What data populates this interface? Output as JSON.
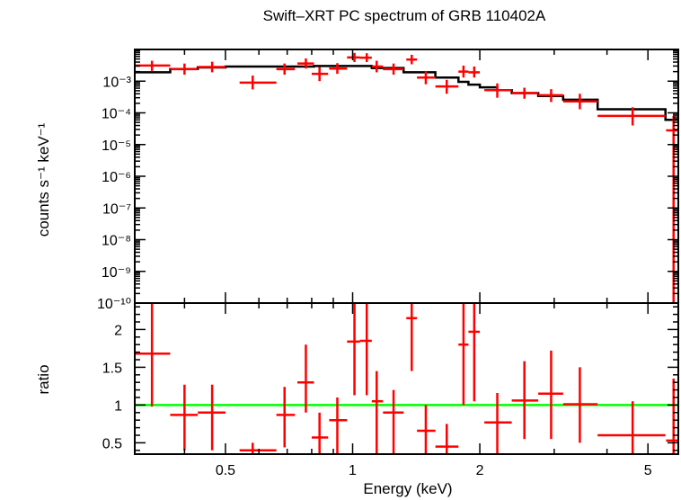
{
  "chart_data": {
    "type": "scatter",
    "title": "Swift–XRT PC spectrum of GRB 110402A",
    "xlabel": "Energy (keV)",
    "x_scale": "log",
    "xlim": [
      0.305,
      5.9
    ],
    "x_ticks": [
      {
        "value": 0.5,
        "label": "0.5"
      },
      {
        "value": 1,
        "label": "1"
      },
      {
        "value": 2,
        "label": "2"
      },
      {
        "value": 5,
        "label": "5"
      }
    ],
    "colors": {
      "data": "#ff0000",
      "model": "#000000",
      "unity": "#00ff00"
    },
    "top_panel": {
      "ylabel": "counts s⁻¹ keV⁻¹",
      "y_scale": "log",
      "ylim": [
        1e-10,
        0.01
      ],
      "y_ticks": [
        {
          "value": 0.001,
          "label": "10⁻³"
        },
        {
          "value": 0.0001,
          "label": "10⁻⁴"
        },
        {
          "value": 1e-05,
          "label": "10⁻⁵"
        },
        {
          "value": 1e-06,
          "label": "10⁻⁶"
        },
        {
          "value": 1e-07,
          "label": "10⁻⁷"
        },
        {
          "value": 1e-08,
          "label": "10⁻⁸"
        },
        {
          "value": 1e-09,
          "label": "10⁻⁹"
        },
        {
          "value": 1e-10,
          "label": "10⁻¹⁰"
        }
      ],
      "series": [
        {
          "type": "errorbar",
          "points": [
            {
              "x": 0.335,
              "xlo": 0.305,
              "xhi": 0.37,
              "y": 0.0031,
              "ylo": 0.0021,
              "yhi": 0.0044
            },
            {
              "x": 0.4,
              "xlo": 0.37,
              "xhi": 0.43,
              "y": 0.0024,
              "ylo": 0.0016,
              "yhi": 0.0036
            },
            {
              "x": 0.465,
              "xlo": 0.43,
              "xhi": 0.5,
              "y": 0.0028,
              "ylo": 0.0019,
              "yhi": 0.0041
            },
            {
              "x": 0.58,
              "xlo": 0.54,
              "xhi": 0.66,
              "y": 0.0009,
              "ylo": 0.00055,
              "yhi": 0.0015
            },
            {
              "x": 0.69,
              "xlo": 0.66,
              "xhi": 0.73,
              "y": 0.0024,
              "ylo": 0.0016,
              "yhi": 0.0036
            },
            {
              "x": 0.775,
              "xlo": 0.74,
              "xhi": 0.81,
              "y": 0.0036,
              "ylo": 0.0025,
              "yhi": 0.0052
            },
            {
              "x": 0.835,
              "xlo": 0.8,
              "xhi": 0.875,
              "y": 0.0017,
              "ylo": 0.001,
              "yhi": 0.0028
            },
            {
              "x": 0.92,
              "xlo": 0.88,
              "xhi": 0.97,
              "y": 0.0025,
              "ylo": 0.0017,
              "yhi": 0.0037
            },
            {
              "x": 1.01,
              "xlo": 0.97,
              "xhi": 1.04,
              "y": 0.0056,
              "ylo": 0.004,
              "yhi": 0.0078
            },
            {
              "x": 1.08,
              "xlo": 1.04,
              "xhi": 1.11,
              "y": 0.0055,
              "ylo": 0.004,
              "yhi": 0.0076
            },
            {
              "x": 1.14,
              "xlo": 1.11,
              "xhi": 1.18,
              "y": 0.0029,
              "ylo": 0.0019,
              "yhi": 0.0044
            },
            {
              "x": 1.25,
              "xlo": 1.18,
              "xhi": 1.32,
              "y": 0.0024,
              "ylo": 0.0016,
              "yhi": 0.0036
            },
            {
              "x": 1.38,
              "xlo": 1.34,
              "xhi": 1.42,
              "y": 0.0048,
              "ylo": 0.0034,
              "yhi": 0.0068
            },
            {
              "x": 1.49,
              "xlo": 1.42,
              "xhi": 1.57,
              "y": 0.0013,
              "ylo": 0.0008,
              "yhi": 0.0021
            },
            {
              "x": 1.67,
              "xlo": 1.57,
              "xhi": 1.78,
              "y": 0.00068,
              "ylo": 0.0004,
              "yhi": 0.0011
            },
            {
              "x": 1.83,
              "xlo": 1.78,
              "xhi": 1.88,
              "y": 0.002,
              "ylo": 0.0013,
              "yhi": 0.0031
            },
            {
              "x": 1.94,
              "xlo": 1.88,
              "xhi": 2.0,
              "y": 0.0019,
              "ylo": 0.0013,
              "yhi": 0.0029
            },
            {
              "x": 2.2,
              "xlo": 2.05,
              "xhi": 2.38,
              "y": 0.00052,
              "ylo": 0.0003,
              "yhi": 0.00085
            },
            {
              "x": 2.55,
              "xlo": 2.38,
              "xhi": 2.75,
              "y": 0.00042,
              "ylo": 0.00028,
              "yhi": 0.00062
            },
            {
              "x": 2.95,
              "xlo": 2.75,
              "xhi": 3.15,
              "y": 0.00036,
              "ylo": 0.00022,
              "yhi": 0.00056
            },
            {
              "x": 3.45,
              "xlo": 3.15,
              "xhi": 3.8,
              "y": 0.00023,
              "ylo": 0.00013,
              "yhi": 0.0004
            },
            {
              "x": 4.6,
              "xlo": 3.8,
              "xhi": 5.5,
              "y": 8e-05,
              "ylo": 4e-05,
              "yhi": 0.00015
            },
            {
              "x": 5.75,
              "xlo": 5.52,
              "xhi": 5.9,
              "y": 2.8e-05,
              "ylo": 1e-10,
              "yhi": 8e-05
            }
          ]
        },
        {
          "type": "step",
          "bins": [
            {
              "xlo": 0.305,
              "xhi": 0.37,
              "y": 0.0019
            },
            {
              "xlo": 0.37,
              "xhi": 0.43,
              "y": 0.0024
            },
            {
              "xlo": 0.43,
              "xhi": 0.5,
              "y": 0.0027
            },
            {
              "xlo": 0.5,
              "xhi": 0.54,
              "y": 0.0029
            },
            {
              "xlo": 0.54,
              "xhi": 0.66,
              "y": 0.0029
            },
            {
              "xlo": 0.66,
              "xhi": 0.81,
              "y": 0.0029
            },
            {
              "xlo": 0.81,
              "xhi": 0.97,
              "y": 0.003
            },
            {
              "xlo": 0.97,
              "xhi": 1.11,
              "y": 0.003
            },
            {
              "xlo": 1.11,
              "xhi": 1.32,
              "y": 0.0026
            },
            {
              "xlo": 1.32,
              "xhi": 1.57,
              "y": 0.0019
            },
            {
              "xlo": 1.57,
              "xhi": 1.78,
              "y": 0.0013
            },
            {
              "xlo": 1.78,
              "xhi": 1.88,
              "y": 0.00095
            },
            {
              "xlo": 1.88,
              "xhi": 2.0,
              "y": 0.00078
            },
            {
              "xlo": 2.0,
              "xhi": 2.2,
              "y": 0.00064
            },
            {
              "xlo": 2.2,
              "xhi": 2.38,
              "y": 0.00052
            },
            {
              "xlo": 2.38,
              "xhi": 2.75,
              "y": 0.00042
            },
            {
              "xlo": 2.75,
              "xhi": 3.15,
              "y": 0.00034
            },
            {
              "xlo": 3.15,
              "xhi": 3.8,
              "y": 0.00026
            },
            {
              "xlo": 3.8,
              "xhi": 5.5,
              "y": 0.00013
            },
            {
              "xlo": 5.5,
              "xhi": 5.9,
              "y": 6e-05
            }
          ]
        }
      ]
    },
    "bottom_panel": {
      "ylabel": "ratio",
      "y_scale": "linear",
      "ylim": [
        0.35,
        2.35
      ],
      "y_ticks": [
        {
          "value": 0.5,
          "label": "0.5"
        },
        {
          "value": 1,
          "label": "1"
        },
        {
          "value": 1.5,
          "label": "1.5"
        },
        {
          "value": 2,
          "label": "2"
        }
      ],
      "reference_line": 1,
      "series": [
        {
          "type": "errorbar",
          "points": [
            {
              "x": 0.335,
              "xlo": 0.305,
              "xhi": 0.37,
              "y": 1.68,
              "ylo": 0.98,
              "yhi": 2.35
            },
            {
              "x": 0.4,
              "xlo": 0.37,
              "xhi": 0.43,
              "y": 0.87,
              "ylo": 0.4,
              "yhi": 1.27
            },
            {
              "x": 0.465,
              "xlo": 0.43,
              "xhi": 0.5,
              "y": 0.9,
              "ylo": 0.4,
              "yhi": 1.27
            },
            {
              "x": 0.58,
              "xlo": 0.54,
              "xhi": 0.66,
              "y": 0.4,
              "ylo": 0.35,
              "yhi": 0.5
            },
            {
              "x": 0.69,
              "xlo": 0.66,
              "xhi": 0.73,
              "y": 0.87,
              "ylo": 0.44,
              "yhi": 1.24
            },
            {
              "x": 0.775,
              "xlo": 0.74,
              "xhi": 0.81,
              "y": 1.3,
              "ylo": 0.9,
              "yhi": 1.8
            },
            {
              "x": 0.835,
              "xlo": 0.8,
              "xhi": 0.875,
              "y": 0.57,
              "ylo": 0.35,
              "yhi": 0.9
            },
            {
              "x": 0.92,
              "xlo": 0.88,
              "xhi": 0.97,
              "y": 0.8,
              "ylo": 0.35,
              "yhi": 1.1
            },
            {
              "x": 1.01,
              "xlo": 0.97,
              "xhi": 1.04,
              "y": 1.84,
              "ylo": 1.13,
              "yhi": 2.35
            },
            {
              "x": 1.08,
              "xlo": 1.04,
              "xhi": 1.11,
              "y": 1.85,
              "ylo": 1.13,
              "yhi": 2.35
            },
            {
              "x": 1.14,
              "xlo": 1.11,
              "xhi": 1.18,
              "y": 1.05,
              "ylo": 0.35,
              "yhi": 1.45
            },
            {
              "x": 1.25,
              "xlo": 1.18,
              "xhi": 1.32,
              "y": 0.9,
              "ylo": 0.35,
              "yhi": 1.2
            },
            {
              "x": 1.38,
              "xlo": 1.34,
              "xhi": 1.42,
              "y": 2.15,
              "ylo": 1.45,
              "yhi": 2.35
            },
            {
              "x": 1.49,
              "xlo": 1.42,
              "xhi": 1.57,
              "y": 0.66,
              "ylo": 0.35,
              "yhi": 1.0
            },
            {
              "x": 1.67,
              "xlo": 1.57,
              "xhi": 1.78,
              "y": 0.45,
              "ylo": 0.35,
              "yhi": 0.75
            },
            {
              "x": 1.83,
              "xlo": 1.78,
              "xhi": 1.88,
              "y": 1.8,
              "ylo": 1.0,
              "yhi": 2.35
            },
            {
              "x": 1.94,
              "xlo": 1.88,
              "xhi": 2.0,
              "y": 1.97,
              "ylo": 1.05,
              "yhi": 2.35
            },
            {
              "x": 2.2,
              "xlo": 2.05,
              "xhi": 2.38,
              "y": 0.77,
              "ylo": 0.35,
              "yhi": 1.16
            },
            {
              "x": 2.55,
              "xlo": 2.38,
              "xhi": 2.75,
              "y": 1.06,
              "ylo": 0.55,
              "yhi": 1.58
            },
            {
              "x": 2.95,
              "xlo": 2.75,
              "xhi": 3.15,
              "y": 1.15,
              "ylo": 0.55,
              "yhi": 1.72
            },
            {
              "x": 3.45,
              "xlo": 3.15,
              "xhi": 3.8,
              "y": 1.01,
              "ylo": 0.5,
              "yhi": 1.5
            },
            {
              "x": 4.6,
              "xlo": 3.8,
              "xhi": 5.5,
              "y": 0.6,
              "ylo": 0.35,
              "yhi": 1.05
            },
            {
              "x": 5.75,
              "xlo": 5.52,
              "xhi": 5.9,
              "y": 0.53,
              "ylo": 0.35,
              "yhi": 1.35
            }
          ]
        }
      ]
    }
  }
}
